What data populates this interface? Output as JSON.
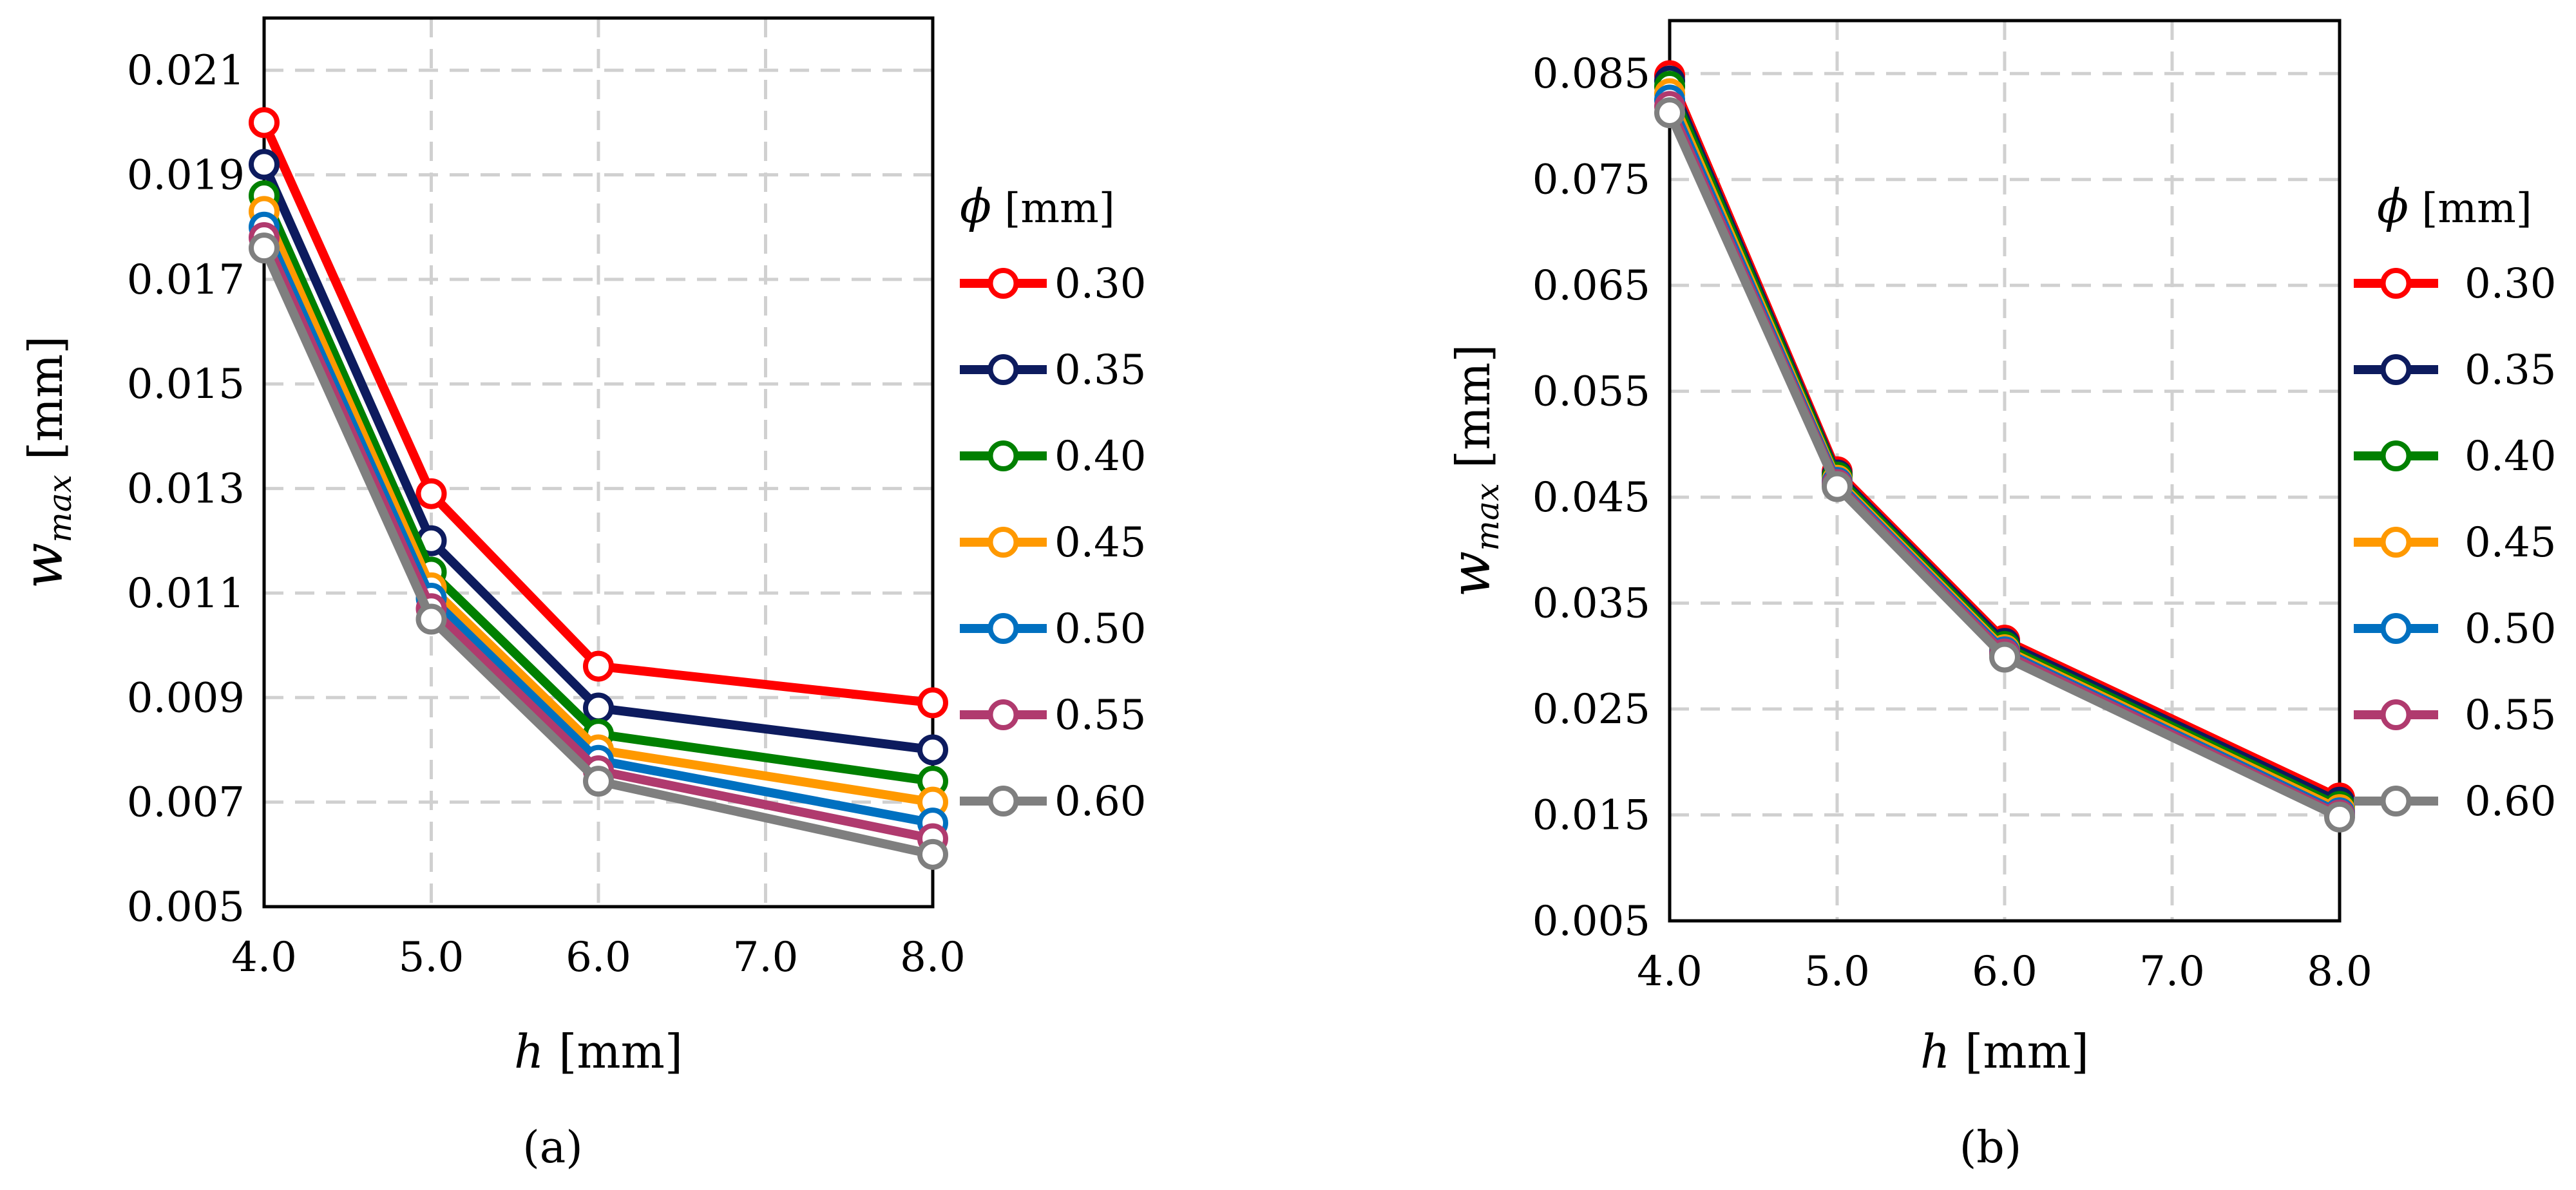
{
  "chart_data": [
    {
      "type": "line",
      "panel_label": "(a)",
      "x": [
        4.0,
        5.0,
        6.0,
        8.0
      ],
      "xlim": [
        4.0,
        8.0
      ],
      "xticks": [
        "4.0",
        "5.0",
        "6.0",
        "7.0",
        "8.0"
      ],
      "xticks_values": [
        4.0,
        5.0,
        6.0,
        7.0,
        8.0
      ],
      "ylim": [
        0.005,
        0.022
      ],
      "yticks": [
        "0.005",
        "0.007",
        "0.009",
        "0.011",
        "0.013",
        "0.015",
        "0.017",
        "0.019",
        "0.021"
      ],
      "yticks_values": [
        0.005,
        0.007,
        0.009,
        0.011,
        0.013,
        0.015,
        0.017,
        0.019,
        0.021
      ],
      "xlabel_var": "h",
      "xlabel_unit": " [mm]",
      "ylabel_var": "w",
      "ylabel_sub": "max",
      "ylabel_unit": " [mm]",
      "grid": true,
      "legend_title_var": "ϕ",
      "legend_title_unit": " [mm]",
      "series": [
        {
          "name": "0.30",
          "color": "#ff0000",
          "values": [
            0.02,
            0.0129,
            0.0096,
            0.0089
          ]
        },
        {
          "name": "0.35",
          "color": "#0d1b5e",
          "values": [
            0.0192,
            0.012,
            0.0088,
            0.008
          ]
        },
        {
          "name": "0.40",
          "color": "#008000",
          "values": [
            0.0186,
            0.0114,
            0.0083,
            0.0074
          ]
        },
        {
          "name": "0.45",
          "color": "#ff9900",
          "values": [
            0.0183,
            0.0111,
            0.008,
            0.007
          ]
        },
        {
          "name": "0.50",
          "color": "#0070c0",
          "values": [
            0.018,
            0.0109,
            0.0078,
            0.0066
          ]
        },
        {
          "name": "0.55",
          "color": "#b03a6e",
          "values": [
            0.0178,
            0.0107,
            0.0076,
            0.0063
          ]
        },
        {
          "name": "0.60",
          "color": "#7f7f7f",
          "values": [
            0.0176,
            0.0105,
            0.0074,
            0.006
          ]
        }
      ]
    },
    {
      "type": "line",
      "panel_label": "(b)",
      "x": [
        4.0,
        5.0,
        6.0,
        8.0
      ],
      "xlim": [
        4.0,
        8.0
      ],
      "xticks": [
        "4.0",
        "5.0",
        "6.0",
        "7.0",
        "8.0"
      ],
      "xticks_values": [
        4.0,
        5.0,
        6.0,
        7.0,
        8.0
      ],
      "ylim": [
        0.005,
        0.09
      ],
      "yticks": [
        "0.005",
        "0.015",
        "0.025",
        "0.035",
        "0.045",
        "0.055",
        "0.065",
        "0.075",
        "0.085"
      ],
      "yticks_values": [
        0.005,
        0.015,
        0.025,
        0.035,
        0.045,
        0.055,
        0.065,
        0.075,
        0.085
      ],
      "xlabel_var": "h",
      "xlabel_unit": " [mm]",
      "ylabel_var": "w",
      "ylabel_sub": "max",
      "ylabel_unit": " [mm]",
      "grid": true,
      "legend_title_var": "ϕ",
      "legend_title_unit": " [mm]",
      "series": [
        {
          "name": "0.30",
          "color": "#ff0000",
          "values": [
            0.0848,
            0.0474,
            0.0315,
            0.0166
          ]
        },
        {
          "name": "0.35",
          "color": "#0d1b5e",
          "values": [
            0.0843,
            0.0471,
            0.0312,
            0.0162
          ]
        },
        {
          "name": "0.40",
          "color": "#008000",
          "values": [
            0.0838,
            0.0469,
            0.0309,
            0.0158
          ]
        },
        {
          "name": "0.45",
          "color": "#ff9900",
          "values": [
            0.0831,
            0.0466,
            0.0306,
            0.0155
          ]
        },
        {
          "name": "0.50",
          "color": "#0070c0",
          "values": [
            0.0825,
            0.0464,
            0.0304,
            0.0152
          ]
        },
        {
          "name": "0.55",
          "color": "#b03a6e",
          "values": [
            0.0819,
            0.0462,
            0.0302,
            0.015
          ]
        },
        {
          "name": "0.60",
          "color": "#7f7f7f",
          "values": [
            0.0813,
            0.046,
            0.0299,
            0.0148
          ]
        }
      ]
    }
  ]
}
